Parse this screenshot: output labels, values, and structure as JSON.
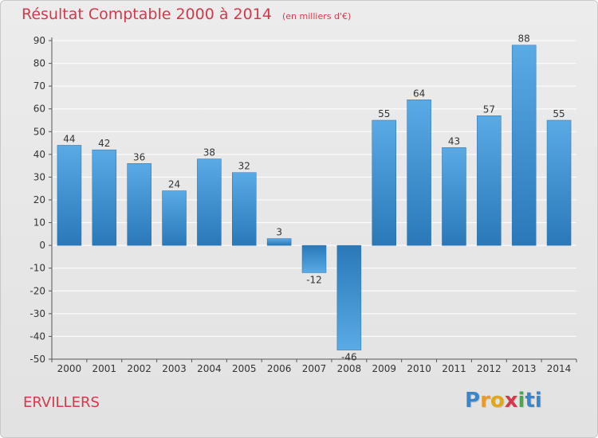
{
  "title": {
    "main": "Résultat Comptable 2000 à 2014",
    "unit": "(en milliers d'€)"
  },
  "commune": "ERVILLERS",
  "logo": {
    "letters": [
      "P",
      "r",
      "o",
      "x",
      "i",
      "ti"
    ]
  },
  "colors": {
    "title": "#d23a4c",
    "bar_top": "#5aaae6",
    "bar_bottom": "#2a78b8",
    "grid": "#ffffff",
    "axis": "#555555",
    "text": "#333333"
  },
  "chart_data": {
    "type": "bar",
    "title": "Résultat Comptable 2000 à 2014",
    "xlabel": "",
    "ylabel": "",
    "ylim": [
      -50,
      90
    ],
    "yticks": [
      90,
      80,
      70,
      60,
      50,
      40,
      30,
      20,
      10,
      0,
      -10,
      -20,
      -30,
      -40,
      -50
    ],
    "grid": true,
    "categories": [
      "2000",
      "2001",
      "2002",
      "2003",
      "2004",
      "2005",
      "2006",
      "2007",
      "2008",
      "2009",
      "2010",
      "2011",
      "2012",
      "2013",
      "2014"
    ],
    "values": [
      44,
      42,
      36,
      24,
      38,
      32,
      3,
      -12,
      -46,
      55,
      64,
      43,
      57,
      88,
      55
    ],
    "labels": [
      "44",
      "42",
      "36",
      "24",
      "38",
      "32",
      "3",
      "-12",
      "-46",
      "55",
      "64",
      "43",
      "57",
      "88",
      "55"
    ]
  }
}
